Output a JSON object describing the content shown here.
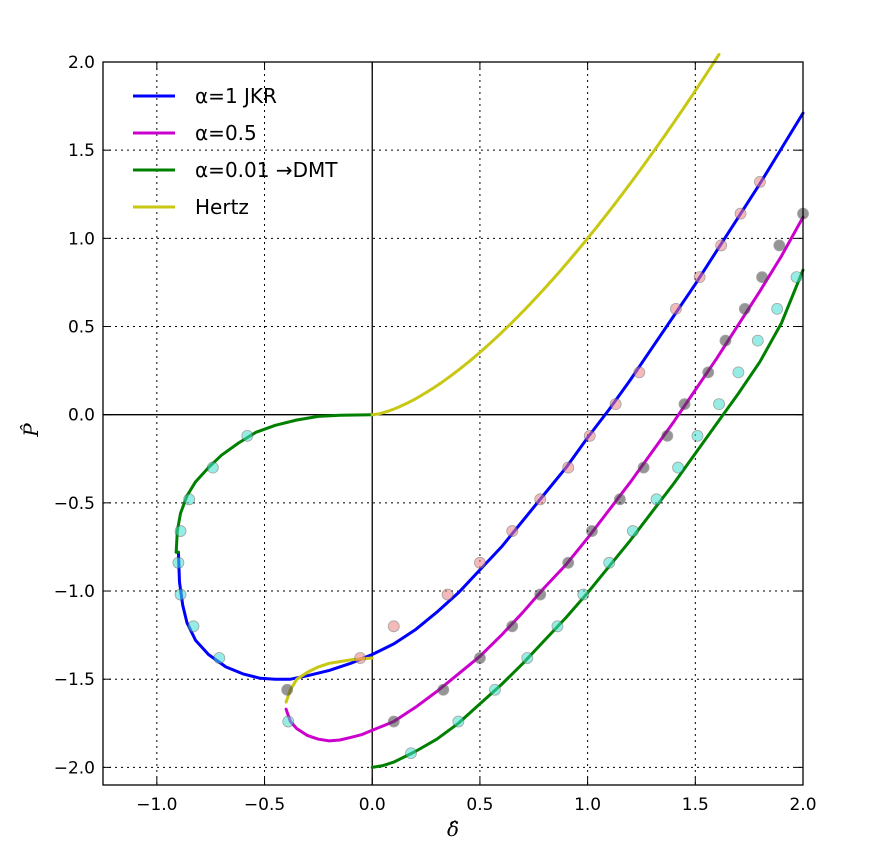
{
  "chart_data": {
    "type": "line",
    "title": "",
    "xlabel": "δ̂",
    "ylabel": "P̂",
    "xlim": [
      -1.25,
      2.0
    ],
    "ylim": [
      -2.1,
      2.0
    ],
    "grid": true,
    "legend_position": "top-left",
    "x_ticks": [
      -1.0,
      -0.5,
      0.0,
      0.5,
      1.0,
      1.5,
      2.0
    ],
    "x_tick_labels": [
      "−1.0",
      "−0.5",
      "0.0",
      "0.5",
      "1.0",
      "1.5",
      "2.0"
    ],
    "y_ticks": [
      2.0,
      1.5,
      1.0,
      0.5,
      0.0,
      -0.5,
      -1.0,
      -1.5,
      -2.0
    ],
    "y_tick_labels": [
      "2.0",
      "1.5",
      "1.0",
      "0.5",
      "0.0",
      "−0.5",
      "−1.0",
      "−1.5",
      "−2.0"
    ],
    "series": [
      {
        "name": "JKR",
        "legend_label": "α=1 JKR",
        "color": "#0000ff",
        "alpha": 1.0,
        "marker_color": "#f08080",
        "marker_points": [
          [
            -0.056,
            -1.38
          ],
          [
            0.1,
            -1.2
          ],
          [
            0.35,
            -1.02
          ],
          [
            0.5,
            -0.84
          ],
          [
            0.65,
            -0.66
          ],
          [
            0.78,
            -0.48
          ],
          [
            0.91,
            -0.3
          ],
          [
            1.01,
            -0.12
          ],
          [
            1.13,
            0.06
          ],
          [
            1.24,
            0.24
          ],
          [
            1.41,
            0.6
          ],
          [
            1.52,
            0.78
          ],
          [
            1.62,
            0.96
          ],
          [
            1.71,
            1.14
          ],
          [
            1.8,
            1.32
          ]
        ]
      },
      {
        "name": "alpha-0.5",
        "legend_label": "α=0.5",
        "color": "#cc00cc",
        "alpha": 0.5,
        "marker_color": "#404040",
        "marker_points": [
          [
            -0.395,
            -1.56
          ],
          [
            0.1,
            -1.74
          ],
          [
            0.33,
            -1.56
          ],
          [
            0.5,
            -1.38
          ],
          [
            0.65,
            -1.2
          ],
          [
            0.78,
            -1.02
          ],
          [
            0.91,
            -0.84
          ],
          [
            1.02,
            -0.66
          ],
          [
            1.15,
            -0.48
          ],
          [
            1.26,
            -0.3
          ],
          [
            1.37,
            -0.12
          ],
          [
            1.45,
            0.06
          ],
          [
            1.56,
            0.24
          ],
          [
            1.64,
            0.42
          ],
          [
            1.73,
            0.6
          ],
          [
            1.81,
            0.78
          ],
          [
            1.89,
            0.96
          ],
          [
            2.0,
            1.14
          ]
        ]
      },
      {
        "name": "DMT",
        "legend_label": "α=0.01 →DMT",
        "color": "#008000",
        "alpha": 0.01,
        "marker_color": "#40e0d0",
        "marker_points": [
          [
            0.18,
            -1.92
          ],
          [
            0.4,
            -1.74
          ],
          [
            0.57,
            -1.56
          ],
          [
            0.72,
            -1.38
          ],
          [
            0.86,
            -1.2
          ],
          [
            0.98,
            -1.02
          ],
          [
            1.1,
            -0.84
          ],
          [
            1.21,
            -0.66
          ],
          [
            1.32,
            -0.48
          ],
          [
            1.42,
            -0.3
          ],
          [
            1.51,
            -0.12
          ],
          [
            1.61,
            0.06
          ],
          [
            1.7,
            0.24
          ],
          [
            1.79,
            0.42
          ],
          [
            1.88,
            0.6
          ],
          [
            1.97,
            0.78
          ],
          [
            -0.58,
            -0.12
          ],
          [
            -0.74,
            -0.3
          ],
          [
            -0.85,
            -0.48
          ],
          [
            -0.89,
            -0.66
          ],
          [
            -0.9,
            -0.84
          ],
          [
            -0.89,
            -1.02
          ],
          [
            -0.83,
            -1.2
          ],
          [
            -0.71,
            -1.38
          ],
          [
            -0.39,
            -1.74
          ]
        ]
      },
      {
        "name": "Hertz",
        "legend_label": "Hertz",
        "color": "#c8c814"
      }
    ]
  }
}
